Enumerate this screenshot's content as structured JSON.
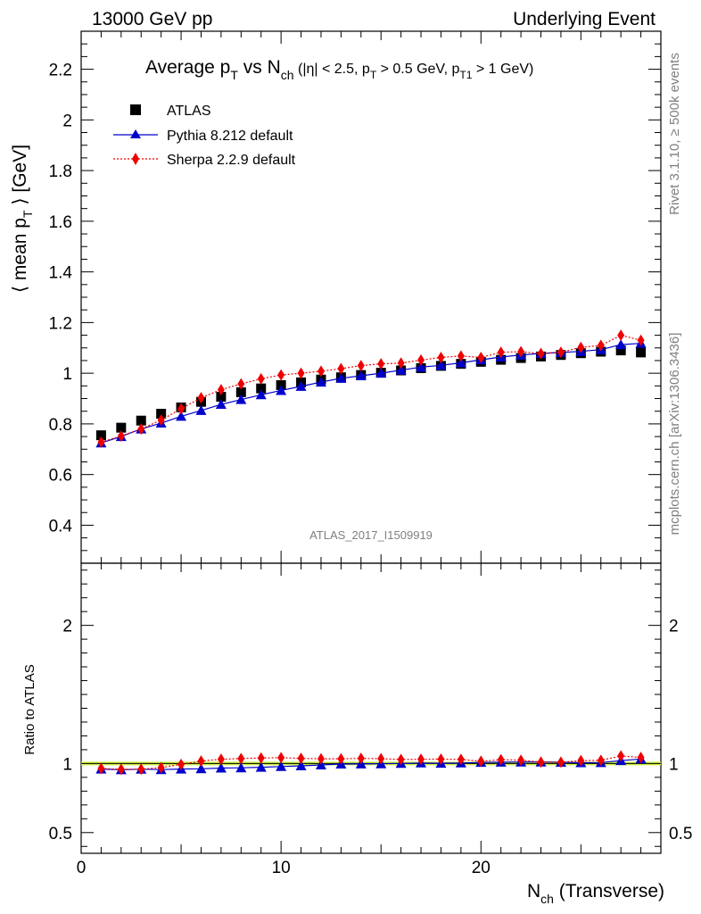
{
  "header": {
    "left": "13000 GeV pp",
    "right": "Underlying Event"
  },
  "side_labels": {
    "rivet": "Rivet 3.1.10, ≥ 500k events",
    "mcplots": "mcplots.cern.ch [arXiv:1306.3436]"
  },
  "watermark": "ATLAS_2017_I1509919",
  "colors": {
    "atlas": "#000000",
    "pythia": "#0000cc",
    "sherpa": "#ee0000",
    "ratio_band": "#ccee44"
  },
  "chart_data": [
    {
      "type": "scatter",
      "title": "Average p_T vs N_ch (|η| < 2.5, p_T > 0.5 GeV, p_T1 > 1 GeV)",
      "title_parts": {
        "a": "Average p",
        "a_sub": "T",
        "b": " vs N",
        "b_sub": "ch",
        "c": " (|η| < 2.5, p",
        "c_sub": "T",
        "d": " > 0.5 GeV, p",
        "d_sub": "T1",
        "e": " > 1 GeV)"
      },
      "ylabel_parts": {
        "a": "⟨ mean p",
        "sub": "T",
        "b": " ⟩ [GeV]"
      },
      "ylim": [
        0.25,
        2.35
      ],
      "xlim": [
        0,
        29
      ],
      "yticks": [
        "0.4",
        "0.6",
        "0.8",
        "1",
        "1.2",
        "1.4",
        "1.6",
        "1.8",
        "2",
        "2.2"
      ],
      "legend_position": "top-left",
      "x": [
        1,
        2,
        3,
        4,
        5,
        6,
        7,
        8,
        9,
        10,
        11,
        12,
        13,
        14,
        15,
        16,
        17,
        18,
        19,
        20,
        21,
        22,
        23,
        24,
        25,
        26,
        27,
        28
      ],
      "series": [
        {
          "name": "ATLAS",
          "marker": "square",
          "values": [
            0.755,
            0.785,
            0.813,
            0.84,
            0.865,
            0.887,
            0.907,
            0.925,
            0.94,
            0.953,
            0.964,
            0.975,
            0.984,
            0.993,
            1.002,
            1.011,
            1.02,
            1.029,
            1.037,
            1.045,
            1.053,
            1.06,
            1.066,
            1.072,
            1.079,
            1.085,
            1.09,
            1.082
          ]
        },
        {
          "name": "Pythia 8.212 default",
          "marker": "triangle",
          "values": [
            0.725,
            0.75,
            0.78,
            0.803,
            0.83,
            0.853,
            0.877,
            0.896,
            0.915,
            0.932,
            0.948,
            0.965,
            0.98,
            0.99,
            1.0,
            1.012,
            1.024,
            1.031,
            1.041,
            1.053,
            1.064,
            1.072,
            1.078,
            1.082,
            1.086,
            1.093,
            1.113,
            1.118
          ]
        },
        {
          "name": "Sherpa 2.2.9 default",
          "marker": "diamond",
          "values": [
            0.728,
            0.752,
            0.78,
            0.815,
            0.86,
            0.903,
            0.935,
            0.958,
            0.978,
            0.993,
            1.0,
            1.008,
            1.018,
            1.03,
            1.037,
            1.04,
            1.052,
            1.062,
            1.068,
            1.062,
            1.083,
            1.085,
            1.078,
            1.083,
            1.102,
            1.11,
            1.15,
            1.13
          ]
        }
      ]
    },
    {
      "type": "scatter",
      "ylabel": "Ratio to ATLAS",
      "xlabel_parts": {
        "a": "N",
        "sub": "ch",
        "b": " (Transverse)"
      },
      "ylim": [
        0.35,
        2.45
      ],
      "xlim": [
        0,
        29
      ],
      "yticks": [
        "0.5",
        "1",
        "2"
      ],
      "xticks": [
        "0",
        "10",
        "20"
      ],
      "reference_line": 1,
      "x": [
        1,
        2,
        3,
        4,
        5,
        6,
        7,
        8,
        9,
        10,
        11,
        12,
        13,
        14,
        15,
        16,
        17,
        18,
        19,
        20,
        21,
        22,
        23,
        24,
        25,
        26,
        27,
        28
      ],
      "series": [
        {
          "name": "Pythia 8.212 default",
          "marker": "triangle",
          "values": [
            0.96,
            0.955,
            0.959,
            0.956,
            0.96,
            0.962,
            0.967,
            0.969,
            0.973,
            0.978,
            0.983,
            0.99,
            0.996,
            0.997,
            0.998,
            1.001,
            1.004,
            1.002,
            1.004,
            1.008,
            1.01,
            1.011,
            1.011,
            1.009,
            1.006,
            1.007,
            1.021,
            1.033
          ]
        },
        {
          "name": "Sherpa 2.2.9 default",
          "marker": "diamond",
          "values": [
            0.964,
            0.958,
            0.959,
            0.97,
            0.994,
            1.018,
            1.031,
            1.036,
            1.04,
            1.042,
            1.037,
            1.034,
            1.034,
            1.037,
            1.035,
            1.029,
            1.031,
            1.032,
            1.03,
            1.016,
            1.028,
            1.024,
            1.011,
            1.01,
            1.021,
            1.023,
            1.055,
            1.044
          ]
        }
      ]
    }
  ]
}
